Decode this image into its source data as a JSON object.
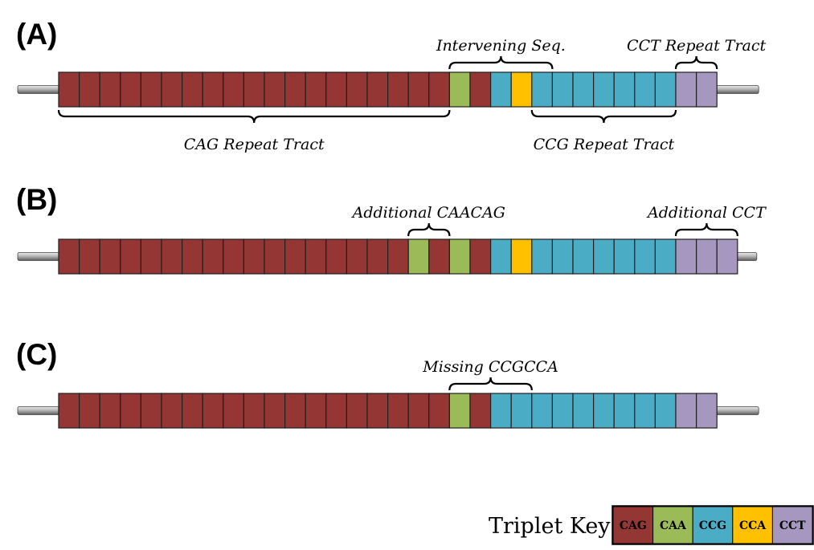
{
  "colors": {
    "CAG": "#943634",
    "CAA": "#9bbb59",
    "CCG": "#4bacc6",
    "CCA": "#ffc000",
    "CCT": "#a597bf"
  },
  "panels": [
    {
      "label": "(A)",
      "sequence": [
        "CAG",
        "CAG",
        "CAG",
        "CAG",
        "CAG",
        "CAG",
        "CAG",
        "CAG",
        "CAG",
        "CAG",
        "CAG",
        "CAG",
        "CAG",
        "CAG",
        "CAG",
        "CAG",
        "CAG",
        "CAG",
        "CAG",
        "CAA",
        "CAG",
        "CCG",
        "CCA",
        "CCG",
        "CCG",
        "CCG",
        "CCG",
        "CCG",
        "CCG",
        "CCG",
        "CCT",
        "CCT"
      ],
      "annotations": [
        {
          "text": "Intervening Seq.",
          "from": 19,
          "to": 24,
          "side": "above"
        },
        {
          "text": "CCT Repeat Tract",
          "from": 30,
          "to": 32,
          "side": "above"
        },
        {
          "text": "CAG Repeat Tract",
          "from": 0,
          "to": 19,
          "side": "below"
        },
        {
          "text": "CCG Repeat Tract",
          "from": 23,
          "to": 30,
          "side": "below"
        }
      ]
    },
    {
      "label": "(B)",
      "sequence": [
        "CAG",
        "CAG",
        "CAG",
        "CAG",
        "CAG",
        "CAG",
        "CAG",
        "CAG",
        "CAG",
        "CAG",
        "CAG",
        "CAG",
        "CAG",
        "CAG",
        "CAG",
        "CAG",
        "CAG",
        "CAA",
        "CAG",
        "CAA",
        "CAG",
        "CCG",
        "CCA",
        "CCG",
        "CCG",
        "CCG",
        "CCG",
        "CCG",
        "CCG",
        "CCG",
        "CCT",
        "CCT",
        "CCT"
      ],
      "annotations": [
        {
          "text": "Additional CAACAG",
          "from": 17,
          "to": 19,
          "side": "above"
        },
        {
          "text": "Additional CCT",
          "from": 30,
          "to": 33,
          "side": "above"
        }
      ]
    },
    {
      "label": "(C)",
      "sequence": [
        "CAG",
        "CAG",
        "CAG",
        "CAG",
        "CAG",
        "CAG",
        "CAG",
        "CAG",
        "CAG",
        "CAG",
        "CAG",
        "CAG",
        "CAG",
        "CAG",
        "CAG",
        "CAG",
        "CAG",
        "CAG",
        "CAG",
        "CAA",
        "CAG",
        "CCG",
        "CCG",
        "CCG",
        "CCG",
        "CCG",
        "CCG",
        "CCG",
        "CCG",
        "CCG",
        "CCT",
        "CCT"
      ],
      "annotations": [
        {
          "text": "Missing CCGCCA",
          "from": 19,
          "to": 23,
          "side": "above"
        }
      ]
    }
  ],
  "key": {
    "title": "Triplet Key:",
    "items": [
      "CAG",
      "CAA",
      "CCG",
      "CCA",
      "CCT"
    ]
  }
}
